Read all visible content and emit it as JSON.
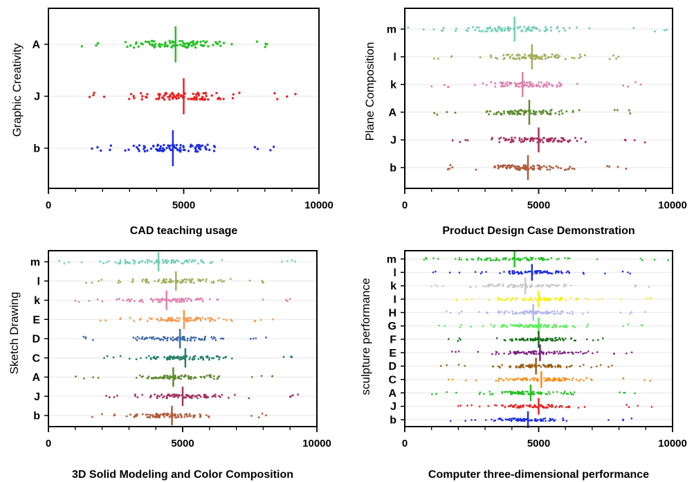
{
  "chart_data": [
    {
      "type": "scatter",
      "subtype": "dot-strip",
      "xlabel": "CAD teaching usage",
      "ylabel": "Graphic Creativity",
      "xlim": [
        0,
        10000
      ],
      "xticks": [
        0,
        5000,
        10000
      ],
      "grid": "horizontal",
      "categories": [
        "A",
        "J",
        "b"
      ],
      "series": [
        {
          "category": "A",
          "color": "#22c022",
          "median": 4700,
          "range": [
            1000,
            8500
          ]
        },
        {
          "category": "J",
          "color": "#e82020",
          "median": 5000,
          "range": [
            1500,
            9400
          ]
        },
        {
          "category": "b",
          "color": "#1f2fe0",
          "median": 4600,
          "range": [
            1600,
            8600
          ]
        }
      ]
    },
    {
      "type": "scatter",
      "subtype": "dot-strip",
      "xlabel": "Product Design Case Demonstration",
      "ylabel": "Plane Composition",
      "xlim": [
        0,
        10000
      ],
      "xticks": [
        0,
        5000,
        10000
      ],
      "grid": "horizontal",
      "categories": [
        "m",
        "l",
        "k",
        "A",
        "J",
        "b"
      ],
      "series": [
        {
          "category": "m",
          "color": "#6fcfb4",
          "median": 4100,
          "range": [
            100,
            9900
          ]
        },
        {
          "category": "l",
          "color": "#a3ae5c",
          "median": 4750,
          "range": [
            1000,
            8600
          ]
        },
        {
          "category": "k",
          "color": "#e07fae",
          "median": 4400,
          "range": [
            1000,
            9200
          ]
        },
        {
          "category": "A",
          "color": "#5f8a2f",
          "median": 4650,
          "range": [
            1000,
            8600
          ]
        },
        {
          "category": "J",
          "color": "#a3325e",
          "median": 5000,
          "range": [
            1500,
            9400
          ]
        },
        {
          "category": "b",
          "color": "#b05a3a",
          "median": 4600,
          "range": [
            1600,
            8600
          ]
        }
      ]
    },
    {
      "type": "scatter",
      "subtype": "dot-strip",
      "xlabel": "3D Solid Modeling and Color Composition",
      "ylabel": "Sketch Drawing",
      "xlim": [
        0,
        10000
      ],
      "xticks": [
        0,
        5000,
        10000
      ],
      "grid": "horizontal",
      "categories": [
        "m",
        "l",
        "k",
        "E",
        "D",
        "C",
        "A",
        "J",
        "b"
      ],
      "series": [
        {
          "category": "m",
          "color": "#6fcfb4",
          "median": 4100,
          "range": [
            100,
            9900
          ]
        },
        {
          "category": "l",
          "color": "#a3ae5c",
          "median": 4750,
          "range": [
            1000,
            8600
          ]
        },
        {
          "category": "k",
          "color": "#e07fae",
          "median": 4400,
          "range": [
            1000,
            9200
          ]
        },
        {
          "category": "E",
          "color": "#f49a50",
          "median": 5050,
          "range": [
            1700,
            8700
          ]
        },
        {
          "category": "D",
          "color": "#3f6aa8",
          "median": 4900,
          "range": [
            1300,
            8200
          ]
        },
        {
          "category": "C",
          "color": "#258068",
          "median": 5100,
          "range": [
            1600,
            9200
          ]
        },
        {
          "category": "A",
          "color": "#5f8a2f",
          "median": 4650,
          "range": [
            1000,
            8600
          ]
        },
        {
          "category": "J",
          "color": "#a3325e",
          "median": 5000,
          "range": [
            1500,
            9400
          ]
        },
        {
          "category": "b",
          "color": "#b05a3a",
          "median": 4600,
          "range": [
            1600,
            8600
          ]
        }
      ]
    },
    {
      "type": "scatter",
      "subtype": "dot-strip",
      "xlabel": "Computer three-dimensional performance",
      "ylabel": "sculpture performance",
      "xlim": [
        0,
        10000
      ],
      "xticks": [
        0,
        5000,
        10000
      ],
      "grid": "horizontal",
      "categories": [
        "m",
        "l",
        "k",
        "I",
        "H",
        "G",
        "F",
        "E",
        "D",
        "C",
        "A",
        "J",
        "b"
      ],
      "series": [
        {
          "category": "m",
          "color": "#22c022",
          "median": 4100,
          "range": [
            100,
            9900
          ]
        },
        {
          "category": "l",
          "color": "#1f2fe0",
          "median": 4750,
          "range": [
            1000,
            8600
          ]
        },
        {
          "category": "k",
          "color": "#c9c9c9",
          "median": 4500,
          "range": [
            1000,
            9200
          ]
        },
        {
          "category": "I",
          "color": "#f4f01a",
          "median": 5000,
          "range": [
            1400,
            9200
          ]
        },
        {
          "category": "H",
          "color": "#b3b4ee",
          "median": 4800,
          "range": [
            1300,
            9200
          ]
        },
        {
          "category": "G",
          "color": "#4ff04f",
          "median": 5000,
          "range": [
            1100,
            9300
          ]
        },
        {
          "category": "F",
          "color": "#146e14",
          "median": 5000,
          "range": [
            1500,
            7500
          ]
        },
        {
          "category": "E",
          "color": "#7a2280",
          "median": 5050,
          "range": [
            1700,
            8700
          ]
        },
        {
          "category": "D",
          "color": "#9a5e14",
          "median": 4900,
          "range": [
            1300,
            8200
          ]
        },
        {
          "category": "C",
          "color": "#fa8b16",
          "median": 5100,
          "range": [
            1600,
            9200
          ]
        },
        {
          "category": "A",
          "color": "#22c022",
          "median": 4700,
          "range": [
            1000,
            8600
          ]
        },
        {
          "category": "J",
          "color": "#e82020",
          "median": 5000,
          "range": [
            1500,
            9400
          ]
        },
        {
          "category": "b",
          "color": "#1f2fe0",
          "median": 4600,
          "range": [
            1600,
            8600
          ]
        }
      ]
    }
  ]
}
